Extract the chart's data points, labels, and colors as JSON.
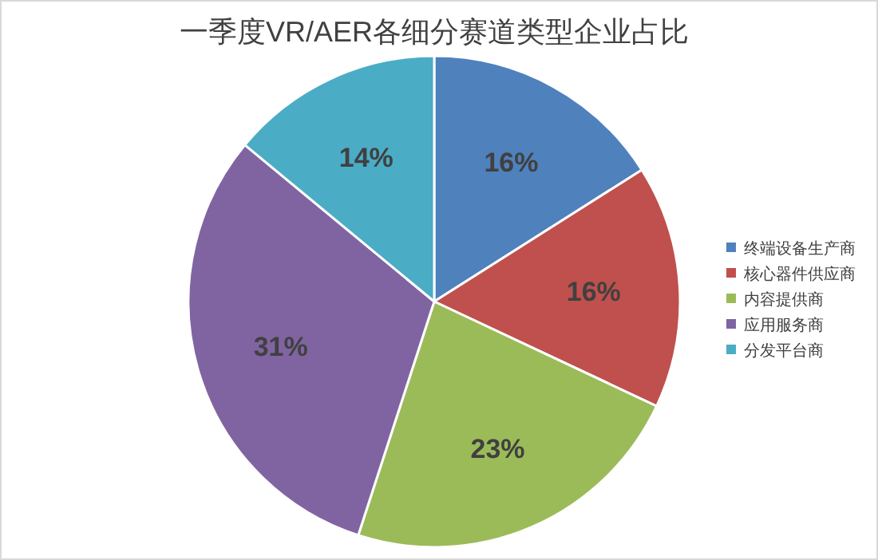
{
  "chart_data": {
    "type": "pie",
    "title": "一季度VR/AER各细分赛道类型企业占比",
    "categories": [
      "终端设备生产商",
      "核心器件供应商",
      "内容提供商",
      "应用服务商",
      "分发平台商"
    ],
    "values": [
      16,
      16,
      23,
      31,
      14
    ],
    "colors": [
      "#4f81bd",
      "#c0504d",
      "#9bbb59",
      "#8064a2",
      "#4bacc6"
    ],
    "value_labels": [
      "16%",
      "16%",
      "23%",
      "31%",
      "14%"
    ],
    "legend": "right"
  }
}
